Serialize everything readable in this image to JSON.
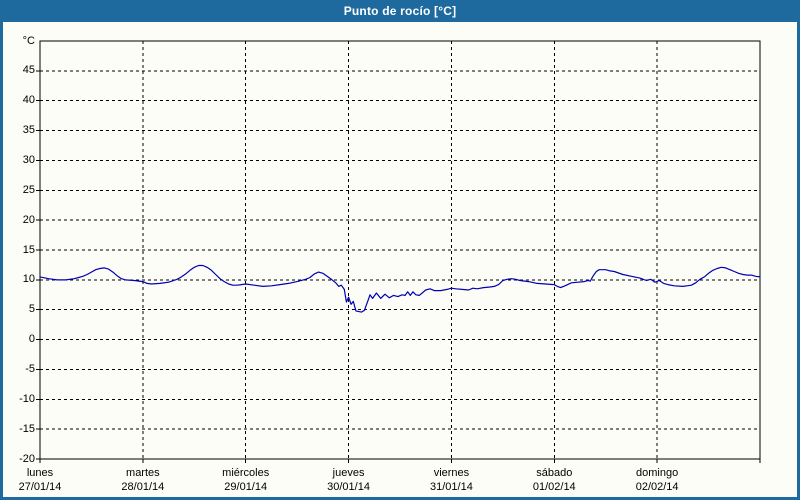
{
  "header": {
    "title": "Punto de rocío [°C]"
  },
  "colors": {
    "accent_blue": "#1e6a9e",
    "title_text": "#ffffff",
    "line_blue": "#0000b4",
    "grid_black": "#000000",
    "background": "#fcfdf6"
  },
  "chart_data": {
    "type": "line",
    "title": "Punto de rocío [°C]",
    "ylabel": "°C",
    "grid": "dashed",
    "legend": "none",
    "y_axis": {
      "unit_label": "°C",
      "min": -20,
      "max": 50,
      "tick_step": 5,
      "tick_labels": [
        45,
        40,
        35,
        30,
        25,
        20,
        15,
        10,
        5,
        0,
        -5,
        -10,
        -15,
        -20
      ]
    },
    "x_axis": {
      "hours_per_day": 24,
      "days": [
        {
          "name": "lunes",
          "date": "27/01/14"
        },
        {
          "name": "martes",
          "date": "28/01/14"
        },
        {
          "name": "miércoles",
          "date": "29/01/14"
        },
        {
          "name": "jueves",
          "date": "30/01/14"
        },
        {
          "name": "viernes",
          "date": "31/01/14"
        },
        {
          "name": "sábado",
          "date": "01/02/14"
        },
        {
          "name": "domingo",
          "date": "02/02/14"
        }
      ]
    },
    "series": [
      {
        "name": "Punto de rocío",
        "color": "#0000b4",
        "points": [
          [
            0,
            10.5
          ],
          [
            2,
            10.2
          ],
          [
            4,
            10.0
          ],
          [
            6,
            10.0
          ],
          [
            8,
            10.2
          ],
          [
            9,
            10.4
          ],
          [
            10,
            10.6
          ],
          [
            11,
            10.9
          ],
          [
            12,
            11.3
          ],
          [
            13,
            11.7
          ],
          [
            14,
            11.9
          ],
          [
            15,
            12.0
          ],
          [
            16,
            11.8
          ],
          [
            17,
            11.3
          ],
          [
            18,
            10.7
          ],
          [
            19,
            10.2
          ],
          [
            20,
            10.0
          ],
          [
            22,
            9.9
          ],
          [
            24,
            9.7
          ],
          [
            25,
            9.4
          ],
          [
            26,
            9.3
          ],
          [
            28,
            9.4
          ],
          [
            30,
            9.6
          ],
          [
            32,
            10.1
          ],
          [
            33,
            10.5
          ],
          [
            34,
            11.0
          ],
          [
            35,
            11.6
          ],
          [
            36,
            12.1
          ],
          [
            37,
            12.4
          ],
          [
            38,
            12.4
          ],
          [
            39,
            12.1
          ],
          [
            40,
            11.6
          ],
          [
            41,
            10.9
          ],
          [
            42,
            10.2
          ],
          [
            43,
            9.7
          ],
          [
            44,
            9.3
          ],
          [
            45,
            9.1
          ],
          [
            46,
            9.1
          ],
          [
            47,
            9.2
          ],
          [
            48,
            9.3
          ],
          [
            50,
            9.1
          ],
          [
            52,
            8.9
          ],
          [
            54,
            9.0
          ],
          [
            56,
            9.2
          ],
          [
            58,
            9.4
          ],
          [
            60,
            9.7
          ],
          [
            62,
            10.1
          ],
          [
            63,
            10.4
          ],
          [
            64,
            11.0
          ],
          [
            65,
            11.3
          ],
          [
            66,
            11.1
          ],
          [
            67,
            10.6
          ],
          [
            68,
            10.1
          ],
          [
            69,
            9.5
          ],
          [
            69.7,
            8.9
          ],
          [
            70.3,
            9.1
          ],
          [
            71,
            8.4
          ],
          [
            71.5,
            6.3
          ],
          [
            72,
            7.1
          ],
          [
            72.6,
            5.9
          ],
          [
            73.1,
            6.4
          ],
          [
            73.7,
            4.8
          ],
          [
            75,
            4.6
          ],
          [
            75.7,
            4.9
          ],
          [
            76.5,
            6.5
          ],
          [
            77,
            7.5
          ],
          [
            77.6,
            6.9
          ],
          [
            78.5,
            7.8
          ],
          [
            79.5,
            6.9
          ],
          [
            80.5,
            7.6
          ],
          [
            81.5,
            7.0
          ],
          [
            82.5,
            7.4
          ],
          [
            83.5,
            7.2
          ],
          [
            84.5,
            7.5
          ],
          [
            85.2,
            7.4
          ],
          [
            85.8,
            8.0
          ],
          [
            86.4,
            7.4
          ],
          [
            87,
            8.0
          ],
          [
            87.7,
            7.5
          ],
          [
            88.5,
            7.4
          ],
          [
            90,
            8.3
          ],
          [
            91,
            8.5
          ],
          [
            92,
            8.2
          ],
          [
            93.5,
            8.2
          ],
          [
            95,
            8.4
          ],
          [
            96,
            8.6
          ],
          [
            97,
            8.5
          ],
          [
            98.5,
            8.4
          ],
          [
            100,
            8.3
          ],
          [
            101,
            8.6
          ],
          [
            102,
            8.5
          ],
          [
            103.5,
            8.7
          ],
          [
            105,
            8.8
          ],
          [
            106,
            8.9
          ],
          [
            107,
            9.2
          ],
          [
            108,
            9.9
          ],
          [
            109,
            10.1
          ],
          [
            110,
            10.2
          ],
          [
            111,
            10.1
          ],
          [
            112,
            9.9
          ],
          [
            114,
            9.7
          ],
          [
            116,
            9.4
          ],
          [
            118,
            9.3
          ],
          [
            120,
            9.2
          ],
          [
            120.7,
            8.9
          ],
          [
            121.5,
            8.7
          ],
          [
            122.5,
            9.0
          ],
          [
            124,
            9.5
          ],
          [
            125.5,
            9.6
          ],
          [
            127,
            9.7
          ],
          [
            127.8,
            9.9
          ],
          [
            128.4,
            9.8
          ],
          [
            129,
            10.6
          ],
          [
            129.8,
            11.4
          ],
          [
            130.5,
            11.7
          ],
          [
            132,
            11.7
          ],
          [
            133,
            11.5
          ],
          [
            134,
            11.4
          ],
          [
            136,
            10.9
          ],
          [
            138,
            10.6
          ],
          [
            140,
            10.3
          ],
          [
            141.5,
            9.9
          ],
          [
            142.5,
            10.1
          ],
          [
            143.5,
            9.6
          ],
          [
            144.5,
            9.9
          ],
          [
            145.5,
            9.4
          ],
          [
            146.5,
            9.2
          ],
          [
            148,
            9.0
          ],
          [
            150,
            8.9
          ],
          [
            151,
            9.0
          ],
          [
            152,
            9.1
          ],
          [
            153,
            9.5
          ],
          [
            154,
            10.1
          ],
          [
            155,
            10.5
          ],
          [
            156,
            11.1
          ],
          [
            157,
            11.6
          ],
          [
            158,
            11.9
          ],
          [
            159,
            12.1
          ],
          [
            160,
            12.0
          ],
          [
            161,
            11.7
          ],
          [
            162,
            11.4
          ],
          [
            163,
            11.1
          ],
          [
            164,
            10.9
          ],
          [
            165,
            10.8
          ],
          [
            166,
            10.8
          ],
          [
            167,
            10.6
          ],
          [
            168,
            10.5
          ]
        ]
      }
    ]
  }
}
